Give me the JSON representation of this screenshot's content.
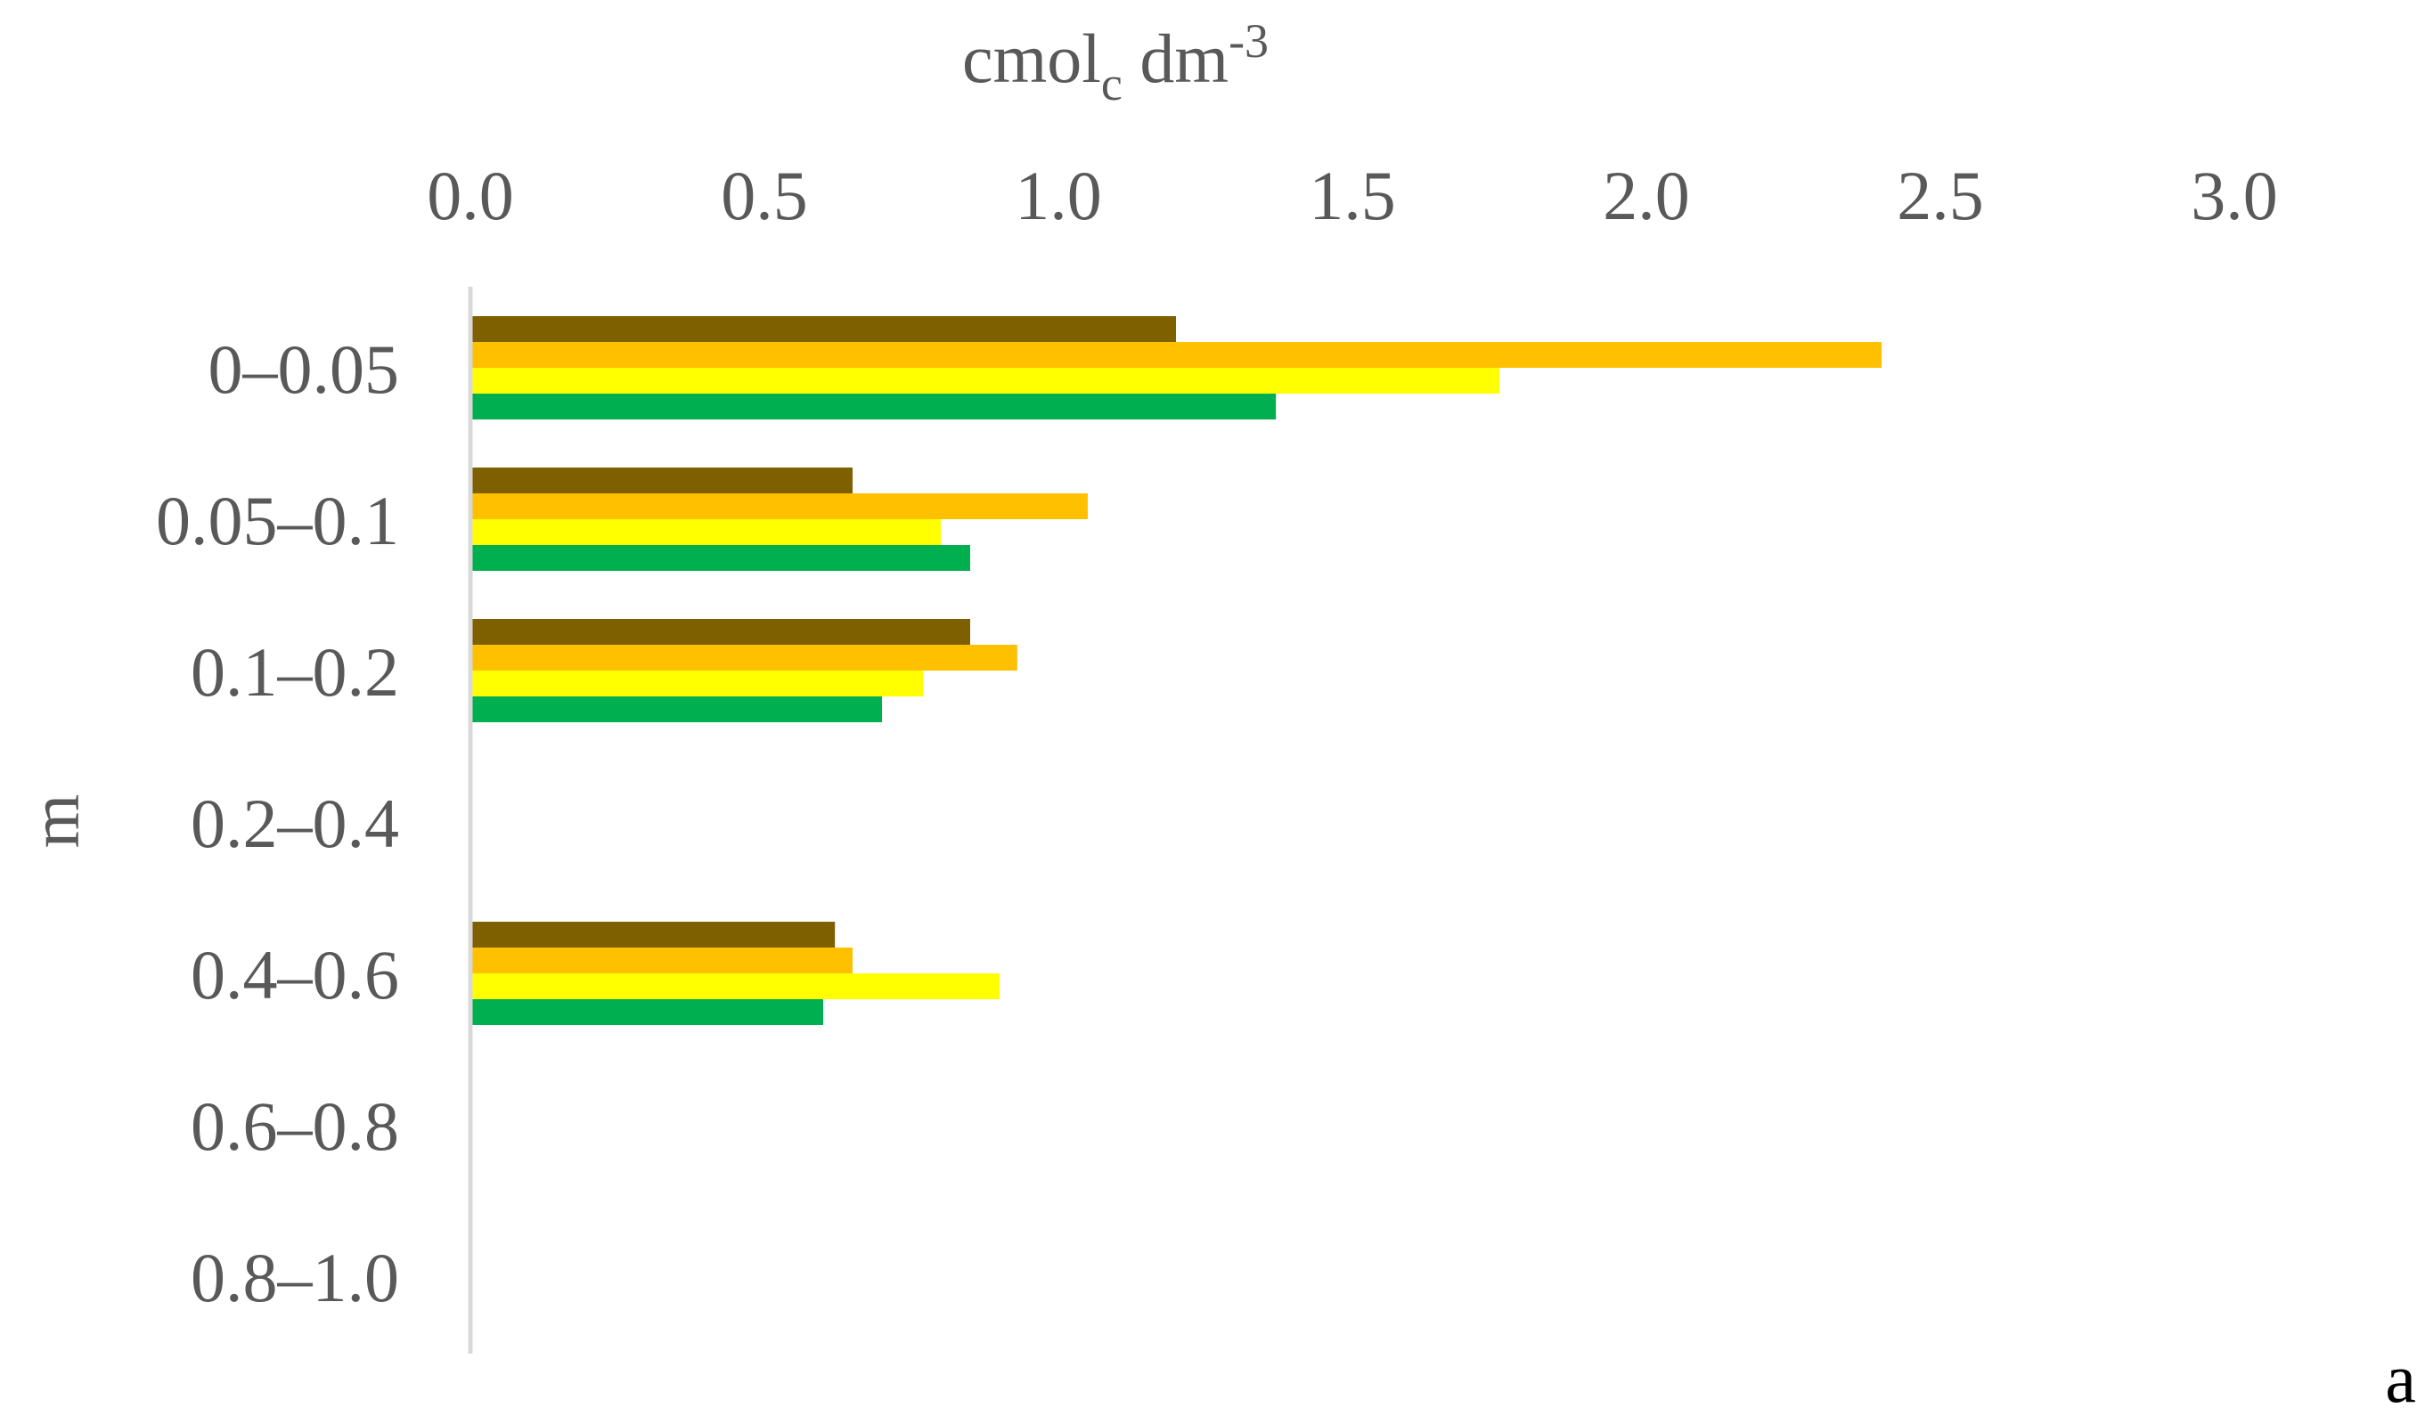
{
  "chart_data": {
    "type": "bar",
    "orientation": "horizontal",
    "xlabel": {
      "base": "cmol",
      "sub": "c",
      "unit": " dm",
      "sup": "-3"
    },
    "ylabel": "m",
    "panel_label": "a",
    "xlim": [
      0,
      3.0
    ],
    "xticks": [
      "0.0",
      "0.5",
      "1.0",
      "1.5",
      "2.0",
      "2.5",
      "3.0"
    ],
    "x_axis_position": "top",
    "grid": false,
    "categories": [
      "0–0.05",
      "0.05–0.1",
      "0.1–0.2",
      "0.2–0.4",
      "0.4–0.6",
      "0.6–0.8",
      "0.8–1.0"
    ],
    "series": [
      {
        "color": "#7f6000",
        "values": [
          1.2,
          0.65,
          0.85,
          null,
          0.62,
          null,
          null
        ]
      },
      {
        "color": "#ffc000",
        "values": [
          2.4,
          1.05,
          0.93,
          null,
          0.65,
          null,
          null
        ]
      },
      {
        "color": "#ffff00",
        "values": [
          1.75,
          0.8,
          0.77,
          null,
          0.9,
          null,
          null
        ]
      },
      {
        "color": "#00b050",
        "values": [
          1.37,
          0.85,
          0.7,
          null,
          0.6,
          null,
          null
        ]
      }
    ]
  }
}
